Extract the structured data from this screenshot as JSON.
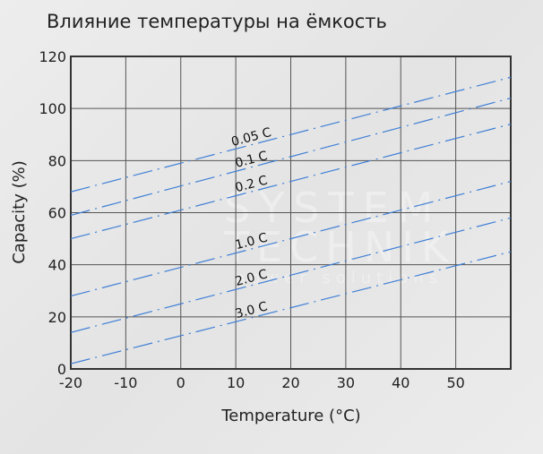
{
  "chart_data": {
    "type": "line",
    "title": "Влияние температуры на ёмкость",
    "xlabel": "Temperature (°C)",
    "ylabel": "Capacity (%)",
    "xlim": [
      -20,
      60
    ],
    "ylim": [
      0,
      120
    ],
    "xticks": [
      "-20",
      "-10",
      "0",
      "10",
      "20",
      "30",
      "40",
      "50"
    ],
    "yticks": [
      "0",
      "20",
      "40",
      "60",
      "80",
      "100",
      "120"
    ],
    "grid": true,
    "line_style": "dash-dot",
    "line_color": "#3f7fd6",
    "x": [
      -20,
      60
    ],
    "series": [
      {
        "name": "0.05 C",
        "values": [
          68,
          112
        ]
      },
      {
        "name": "0.1 C",
        "values": [
          59,
          104
        ]
      },
      {
        "name": "0.2 C",
        "values": [
          50,
          94
        ]
      },
      {
        "name": "1.0 C",
        "values": [
          28,
          72
        ]
      },
      {
        "name": "2.0 C",
        "values": [
          14,
          58
        ]
      },
      {
        "name": "3.0 C",
        "values": [
          2,
          45
        ]
      }
    ]
  },
  "watermark": {
    "line1": "SYSTEM",
    "line2": "TECHNIK",
    "line3": "power solutions"
  }
}
